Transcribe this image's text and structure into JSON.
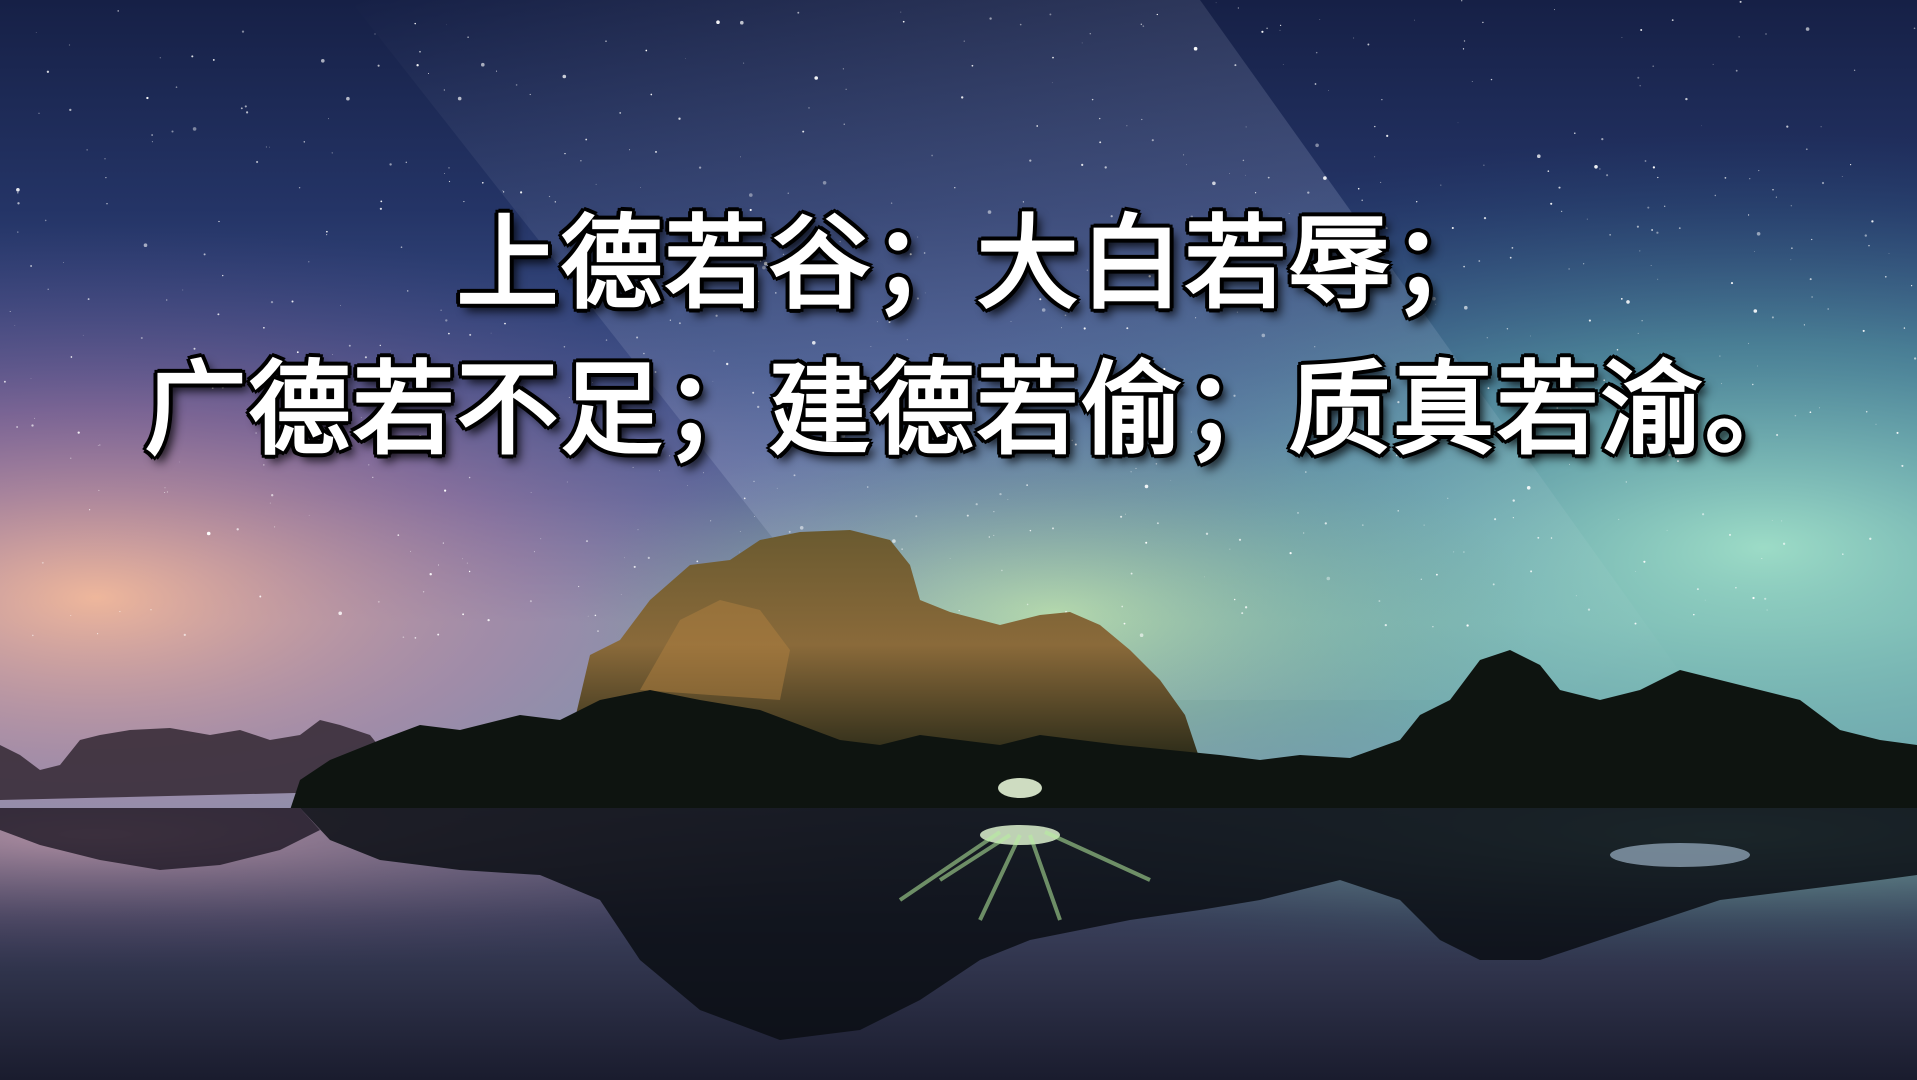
{
  "slide": {
    "line1": "上德若谷；大白若辱；",
    "line2": "广德若不足；建德若偷；质真若渝。"
  },
  "background": {
    "description_icon": "night-sky-lake-mountain-photo",
    "sky_top": "#1a2350",
    "horizon_left": "#e8a890",
    "horizon_right": "#7fd0c0"
  }
}
